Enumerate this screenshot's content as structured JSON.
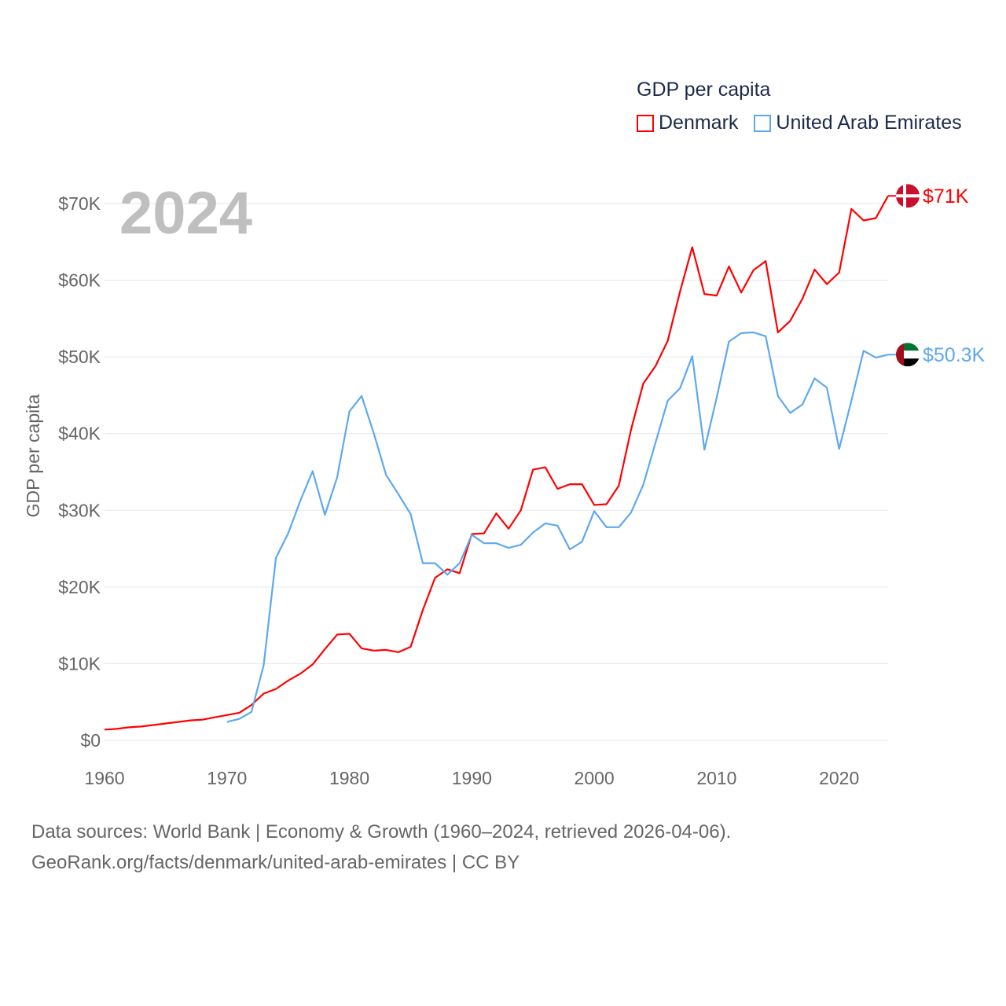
{
  "chart_data": {
    "type": "line",
    "title": "GDP per capita",
    "ylabel": "GDP per capita",
    "xlabel": "",
    "year_label": "2024",
    "xlim": [
      1960,
      2024
    ],
    "ylim": [
      0,
      70000
    ],
    "x_ticks": [
      "1960",
      "1970",
      "1980",
      "1990",
      "2000",
      "2010",
      "2020"
    ],
    "y_ticks": [
      "$0",
      "$10K",
      "$20K",
      "$30K",
      "$40K",
      "$50K",
      "$60K",
      "$70K"
    ],
    "grid": true,
    "legend_placement": "top-right",
    "series": [
      {
        "name": "Denmark",
        "color": "#ff0000",
        "start_year": 1960,
        "end_label": "$71K",
        "values_k": [
          1.4,
          1.5,
          1.7,
          1.8,
          2.0,
          2.2,
          2.4,
          2.6,
          2.7,
          3.0,
          3.3,
          3.6,
          4.6,
          6.1,
          6.7,
          7.8,
          8.7,
          9.9,
          11.9,
          13.8,
          13.9,
          12.0,
          11.7,
          11.8,
          11.5,
          12.2,
          17.0,
          21.2,
          22.3,
          21.8,
          26.9,
          27.0,
          29.6,
          27.6,
          30.0,
          35.3,
          35.6,
          32.8,
          33.4,
          33.4,
          30.7,
          30.8,
          33.2,
          40.5,
          46.5,
          48.8,
          52.1,
          58.5,
          64.3,
          58.2,
          58.0,
          61.8,
          58.4,
          61.3,
          62.5,
          53.2,
          54.7,
          57.6,
          61.4,
          59.5,
          61.0,
          69.3,
          67.8,
          68.1,
          71.0
        ]
      },
      {
        "name": "United Arab Emirates",
        "color": "#5ea8f0",
        "start_year": 1970,
        "end_label": "$50.3K",
        "values_k": [
          2.4,
          2.8,
          3.7,
          9.8,
          23.8,
          27.0,
          31.3,
          35.1,
          29.4,
          34.3,
          42.9,
          44.9,
          40.0,
          34.6,
          32.1,
          29.5,
          23.1,
          23.1,
          21.6,
          23.1,
          26.8,
          25.7,
          25.7,
          25.1,
          25.5,
          27.1,
          28.3,
          28.0,
          24.9,
          25.9,
          29.9,
          27.8,
          27.8,
          29.7,
          33.3,
          38.8,
          44.3,
          45.9,
          50.1,
          37.9,
          44.7,
          52.0,
          53.1,
          53.2,
          52.7,
          44.9,
          42.7,
          43.8,
          47.2,
          46.0,
          38.0,
          44.3,
          50.8,
          49.9,
          50.3
        ]
      }
    ]
  },
  "footer": {
    "line1": "Data sources: World Bank | Economy & Growth (1960–2024, retrieved 2026-04-06).",
    "line2": "GeoRank.org/facts/denmark/united-arab-emirates | CC BY"
  }
}
